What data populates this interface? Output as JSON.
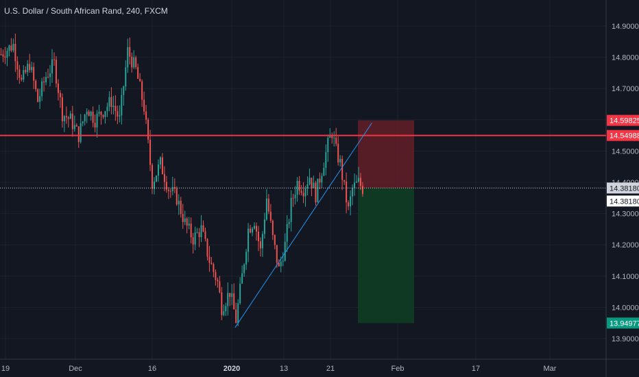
{
  "header": {
    "title": "U.S. Dollar / South African Rand, 240, FXCM"
  },
  "chart_data": {
    "type": "candlestick",
    "symbol": "USD/ZAR",
    "interval": "240",
    "source": "FXCM",
    "ylim": [
      13.85,
      14.95
    ],
    "y_ticks": [
      "14.90000",
      "14.80000",
      "14.70000",
      "14.60000",
      "14.50000",
      "14.40000",
      "14.30000",
      "14.20000",
      "14.10000",
      "14.00000",
      "13.90000"
    ],
    "x_ticks": [
      {
        "label": "19",
        "bold": false
      },
      {
        "label": "Dec",
        "bold": false
      },
      {
        "label": "16",
        "bold": false
      },
      {
        "label": "2020",
        "bold": true
      },
      {
        "label": "13",
        "bold": false
      },
      {
        "label": "21",
        "bold": false
      },
      {
        "label": "Feb",
        "bold": false
      },
      {
        "label": "17",
        "bold": false
      },
      {
        "label": "Mar",
        "bold": false
      }
    ],
    "close_path": [
      [
        0,
        14.81
      ],
      [
        6,
        14.84
      ],
      [
        10,
        14.72
      ],
      [
        14,
        14.78
      ],
      [
        18,
        14.66
      ],
      [
        22,
        14.74
      ],
      [
        26,
        14.78
      ],
      [
        30,
        14.62
      ],
      [
        34,
        14.6
      ],
      [
        38,
        14.55
      ],
      [
        42,
        14.64
      ],
      [
        46,
        14.6
      ],
      [
        50,
        14.63
      ],
      [
        54,
        14.66
      ],
      [
        58,
        14.6
      ],
      [
        62,
        14.82
      ],
      [
        66,
        14.76
      ],
      [
        70,
        14.64
      ],
      [
        74,
        14.4
      ],
      [
        78,
        14.46
      ],
      [
        82,
        14.38
      ],
      [
        86,
        14.35
      ],
      [
        90,
        14.27
      ],
      [
        94,
        14.22
      ],
      [
        98,
        14.25
      ],
      [
        102,
        14.15
      ],
      [
        106,
        14.08
      ],
      [
        108,
        14.0
      ],
      [
        112,
        14.05
      ],
      [
        115,
        13.96
      ],
      [
        118,
        14.1
      ],
      [
        121,
        14.25
      ],
      [
        124,
        14.28
      ],
      [
        127,
        14.18
      ],
      [
        130,
        14.35
      ],
      [
        133,
        14.22
      ],
      [
        136,
        14.12
      ],
      [
        139,
        14.2
      ],
      [
        142,
        14.33
      ],
      [
        145,
        14.4
      ],
      [
        148,
        14.38
      ],
      [
        151,
        14.42
      ],
      [
        154,
        14.36
      ],
      [
        157,
        14.44
      ],
      [
        160,
        14.52
      ],
      [
        162,
        14.56
      ],
      [
        164,
        14.5
      ],
      [
        166,
        14.46
      ],
      [
        168,
        14.38
      ],
      [
        170,
        14.31
      ],
      [
        172,
        14.38
      ],
      [
        175,
        14.4
      ],
      [
        177,
        14.38
      ]
    ],
    "horizontal_line": {
      "value": 14.54988,
      "label": "14.54988",
      "color": "#f23645"
    },
    "last_price": {
      "value": 14.3818,
      "label": "14.38180"
    },
    "stop_level": {
      "value": 14.59825,
      "label": "14.59825",
      "color": "#f23645"
    },
    "target_level": {
      "value": 13.94977,
      "label": "13.94977",
      "color": "#089981"
    },
    "trendline": {
      "from": [
        115,
        13.935
      ],
      "to": [
        182,
        14.59
      ]
    },
    "position_zone": {
      "x_start": 180,
      "x_end": 208
    },
    "x_span": [
      0,
      300
    ]
  },
  "colors": {
    "background": "#131722",
    "up": "#26a69a",
    "down": "#ef5350",
    "grid": "#1e222d",
    "axis_text": "#b2b5be",
    "trendline": "#2196f3",
    "loss_zone": "#5b1d28",
    "profit_zone": "#0f3b24"
  }
}
